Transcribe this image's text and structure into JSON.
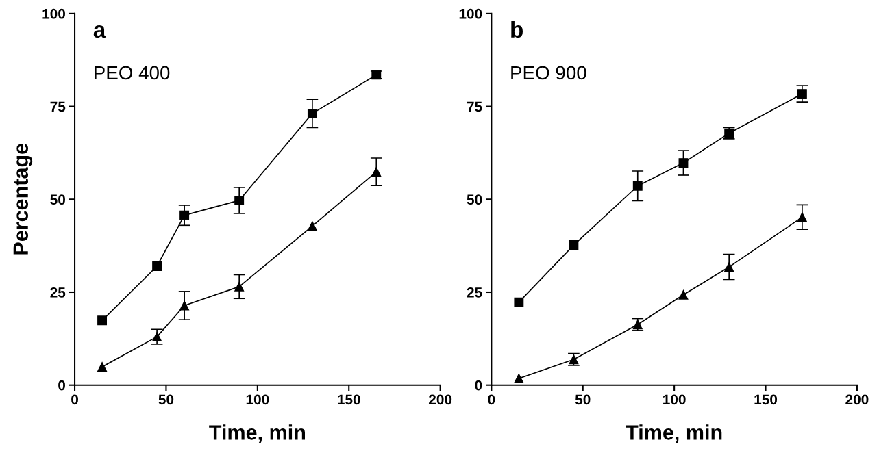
{
  "chart_data": [
    {
      "type": "line",
      "title": "a",
      "annotations": [
        "PEO 400"
      ],
      "xlabel": "Time, min",
      "ylabel": "Percentage",
      "xlim": [
        0,
        200
      ],
      "xticks": [
        0,
        50,
        100,
        150,
        200
      ],
      "ylim": [
        0,
        100
      ],
      "yticks": [
        0,
        25,
        50,
        75,
        100
      ],
      "grid": false,
      "legend": false,
      "series": [
        {
          "color": "#000000",
          "marker": "square",
          "x": [
            15,
            45,
            60,
            90,
            130,
            165
          ],
          "values": [
            17.4,
            32,
            45.7,
            49.7,
            73.1,
            83.5
          ],
          "errors": [
            null,
            null,
            2.7,
            3.5,
            3.8,
            1
          ]
        },
        {
          "color": "#000000",
          "marker": "triangle",
          "x": [
            15,
            45,
            60,
            90,
            130,
            165
          ],
          "values": [
            4.9,
            13,
            21.4,
            26.5,
            42.8,
            57.4
          ],
          "errors": [
            null,
            2,
            3.8,
            3.2,
            null,
            3.7
          ]
        }
      ]
    },
    {
      "type": "line",
      "title": "b",
      "annotations": [
        "PEO 900"
      ],
      "xlabel": "Time, min",
      "xlim": [
        0,
        200
      ],
      "xticks": [
        0,
        50,
        100,
        150,
        200
      ],
      "ylim": [
        0,
        100
      ],
      "yticks": [
        0,
        25,
        50,
        75,
        100
      ],
      "grid": false,
      "legend": false,
      "series": [
        {
          "color": "#000000",
          "marker": "square",
          "x": [
            15,
            45,
            80,
            105,
            130,
            170
          ],
          "values": [
            22.3,
            37.7,
            53.6,
            59.8,
            67.8,
            78.4
          ],
          "errors": [
            null,
            null,
            4,
            3.3,
            1.5,
            2.2
          ]
        },
        {
          "color": "#000000",
          "marker": "triangle",
          "x": [
            15,
            45,
            80,
            105,
            130,
            170
          ],
          "values": [
            1.8,
            6.9,
            16.3,
            24.3,
            31.8,
            45.2
          ],
          "errors": [
            null,
            1.6,
            1.6,
            null,
            3.4,
            3.3
          ]
        }
      ]
    }
  ]
}
